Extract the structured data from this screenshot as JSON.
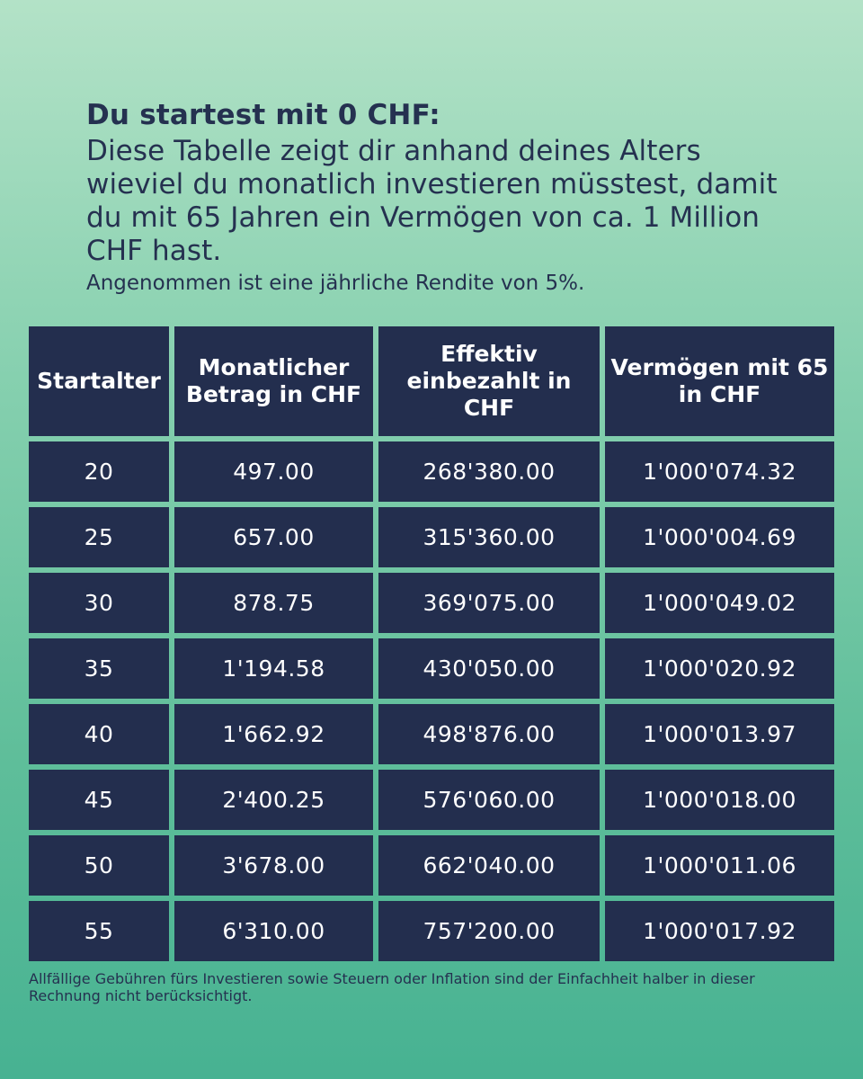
{
  "header": {
    "title": "Du startest mit 0 CHF:",
    "description": "Diese Tabelle zeigt dir anhand deines Alters wieviel du monatlich investieren müsstest, damit du mit 65 Jahren ein Vermögen von ca. 1 Million CHF hast.",
    "assumption": "Angenommen ist eine jährliche Rendite von 5%."
  },
  "chart_data": {
    "type": "table",
    "columns": [
      "Startalter",
      "Monatlicher Betrag in CHF",
      "Effektiv einbezahlt in CHF",
      "Vermögen mit 65 in CHF"
    ],
    "rows": [
      [
        "20",
        "497.00",
        "268'380.00",
        "1'000'074.32"
      ],
      [
        "25",
        "657.00",
        "315'360.00",
        "1'000'004.69"
      ],
      [
        "30",
        "878.75",
        "369'075.00",
        "1'000'049.02"
      ],
      [
        "35",
        "1'194.58",
        "430'050.00",
        "1'000'020.92"
      ],
      [
        "40",
        "1'662.92",
        "498'876.00",
        "1'000'013.97"
      ],
      [
        "45",
        "2'400.25",
        "576'060.00",
        "1'000'018.00"
      ],
      [
        "50",
        "3'678.00",
        "662'040.00",
        "1'000'011.06"
      ],
      [
        "55",
        "6'310.00",
        "757'200.00",
        "1'000'017.92"
      ]
    ]
  },
  "footnote": "Allfällige Gebühren fürs Investieren sowie Steuern oder Inflation sind der Einfachheit halber in dieser Rechnung nicht berücksichtigt.",
  "colors": {
    "cell_background": "#232e4e",
    "text_dark": "#253150",
    "background_top": "#b3e2c7",
    "background_bottom": "#47b292"
  }
}
